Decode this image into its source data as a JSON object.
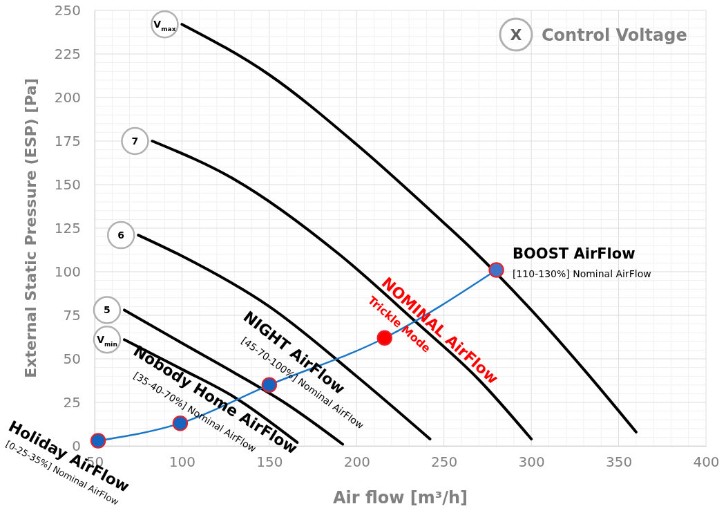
{
  "chart_data": {
    "type": "line",
    "xlabel": "Air flow [m³/h]",
    "ylabel": "External Static Pressure (ESP)   [Pa]",
    "legend_title": "Control Voltage",
    "xlim": [
      50,
      400
    ],
    "xticks": [
      50,
      100,
      150,
      200,
      250,
      300,
      350,
      400
    ],
    "ylim": [
      0,
      250
    ],
    "yticks": [
      0,
      25,
      50,
      75,
      100,
      125,
      150,
      175,
      200,
      225,
      250
    ],
    "grid": true,
    "marker": "none",
    "line_style": "solid",
    "series": [
      {
        "name": "V$_{max}$",
        "color": "#000000",
        "x": [
          100,
          150,
          200,
          250,
          265,
          300,
          330,
          360
        ],
        "values": [
          242,
          213,
          173,
          128,
          114,
          78,
          44,
          8
        ]
      },
      {
        "name": "7",
        "color": "#000000",
        "x": [
          83,
          130,
          190,
          233,
          270,
          300
        ],
        "values": [
          175,
          153,
          110,
          72,
          38,
          4
        ]
      },
      {
        "name": "6",
        "color": "#000000",
        "x": [
          75,
          100,
          150,
          200,
          242
        ],
        "values": [
          121,
          109,
          80,
          40,
          4
        ]
      },
      {
        "name": "5",
        "color": "#000000",
        "x": [
          67,
          100,
          130,
          160,
          192
        ],
        "values": [
          78,
          59,
          42,
          24,
          1
        ]
      },
      {
        "name": "V$_{min}$",
        "color": "#000000",
        "x": [
          67,
          100,
          130,
          166
        ],
        "values": [
          61,
          44,
          28,
          2
        ]
      },
      {
        "color": "#1a75c7",
        "marker": "circle",
        "colors": [
          "#1565c0",
          "#1565c0",
          "#1565c0",
          "#ff0000",
          "#4472c4"
        ],
        "x": [
          52,
          99,
          150,
          216,
          280
        ],
        "values": [
          3,
          13,
          35,
          62,
          101
        ]
      }
    ],
    "annotations": [
      "X",
      "Holiday AirFlow",
      "[0-25-35%] Nominal AirFlow",
      "Nobody Home AirFlow",
      "[35-40-70%] Nominal AirFlow",
      "NIGHT AirFlow",
      "[45-70-100%] Nominal AirFlow",
      "NOMINAL AirFlow",
      "Trickle Mode",
      "BOOST AirFlow",
      "[110-130%] Nominal AirFlow"
    ]
  }
}
